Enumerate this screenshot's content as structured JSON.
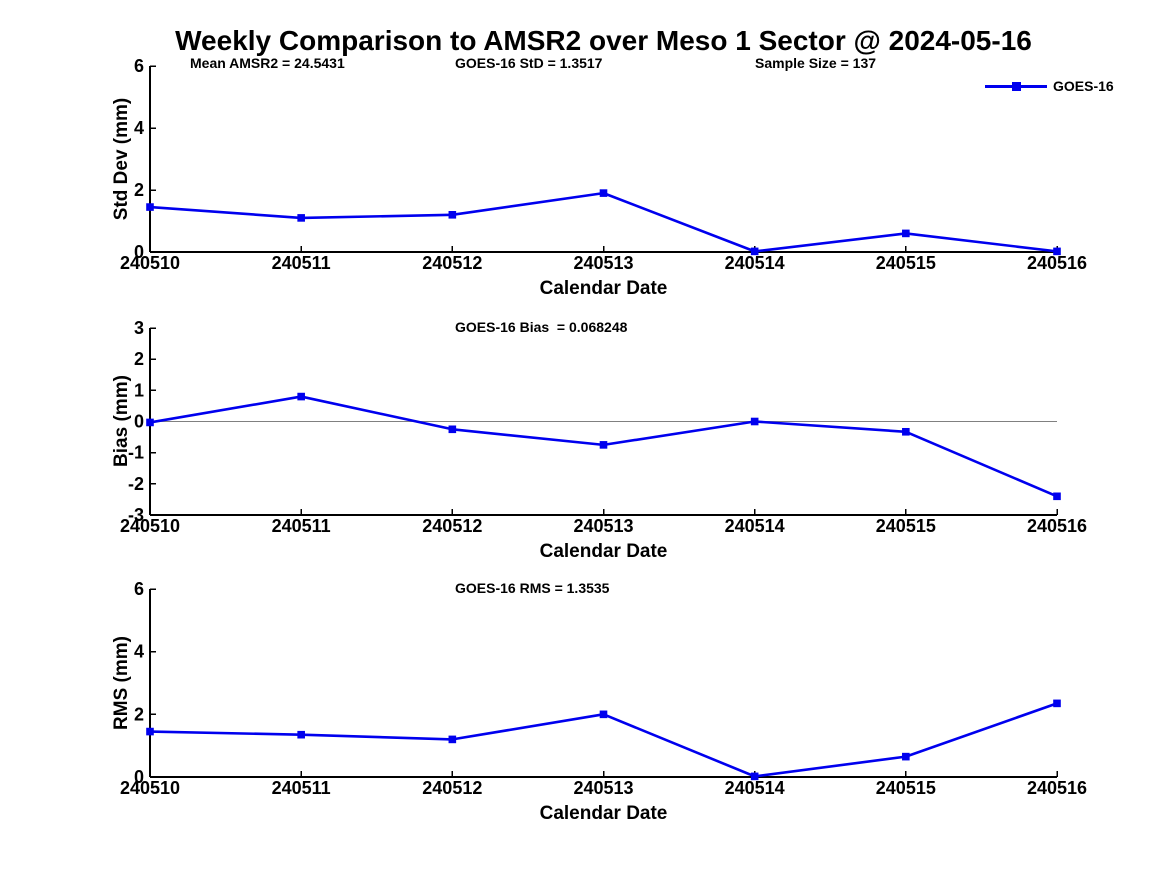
{
  "title": "Weekly Comparison to AMSR2 over Meso 1 Sector @ 2024-05-16",
  "legend": {
    "label": "GOES-16"
  },
  "colors": {
    "line": "#0000ee",
    "axis": "#000000",
    "zero_line": "#808080"
  },
  "categories": [
    "240510",
    "240511",
    "240512",
    "240513",
    "240514",
    "240515",
    "240516"
  ],
  "chart_data": [
    {
      "type": "line",
      "panel": "std_dev",
      "ylabel": "Std Dev (mm)",
      "xlabel": "Calendar Date",
      "ylim": [
        0,
        6
      ],
      "yticks": [
        0,
        2,
        4,
        6
      ],
      "grid": false,
      "legend_position": "top-right",
      "categories": [
        "240510",
        "240511",
        "240512",
        "240513",
        "240514",
        "240515",
        "240516"
      ],
      "series": [
        {
          "name": "GOES-16",
          "values": [
            1.45,
            1.1,
            1.2,
            1.9,
            0.02,
            0.6,
            0.02
          ]
        }
      ],
      "annotations": {
        "left": "Mean AMSR2 = 24.5431",
        "center": "GOES-16 StD = 1.3517",
        "right": "Sample Size = 137"
      }
    },
    {
      "type": "line",
      "panel": "bias",
      "ylabel": "Bias (mm)",
      "xlabel": "Calendar Date",
      "ylim": [
        -3,
        3
      ],
      "yticks": [
        3,
        2,
        1,
        0,
        -1,
        -2,
        -3
      ],
      "zero_line": true,
      "grid": false,
      "categories": [
        "240510",
        "240511",
        "240512",
        "240513",
        "240514",
        "240515",
        "240516"
      ],
      "series": [
        {
          "name": "GOES-16",
          "values": [
            -0.03,
            0.8,
            -0.25,
            -0.75,
            0.0,
            -0.33,
            -2.4
          ]
        }
      ],
      "annotations": {
        "center": "GOES-16 Bias  = 0.068248"
      }
    },
    {
      "type": "line",
      "panel": "rms",
      "ylabel": "RMS (mm)",
      "xlabel": "Calendar Date",
      "ylim": [
        0,
        6
      ],
      "yticks": [
        0,
        2,
        4,
        6
      ],
      "grid": false,
      "categories": [
        "240510",
        "240511",
        "240512",
        "240513",
        "240514",
        "240515",
        "240516"
      ],
      "series": [
        {
          "name": "GOES-16",
          "values": [
            1.45,
            1.35,
            1.2,
            2.0,
            0.02,
            0.65,
            2.35
          ]
        }
      ],
      "annotations": {
        "center": "GOES-16 RMS = 1.3535"
      }
    }
  ]
}
